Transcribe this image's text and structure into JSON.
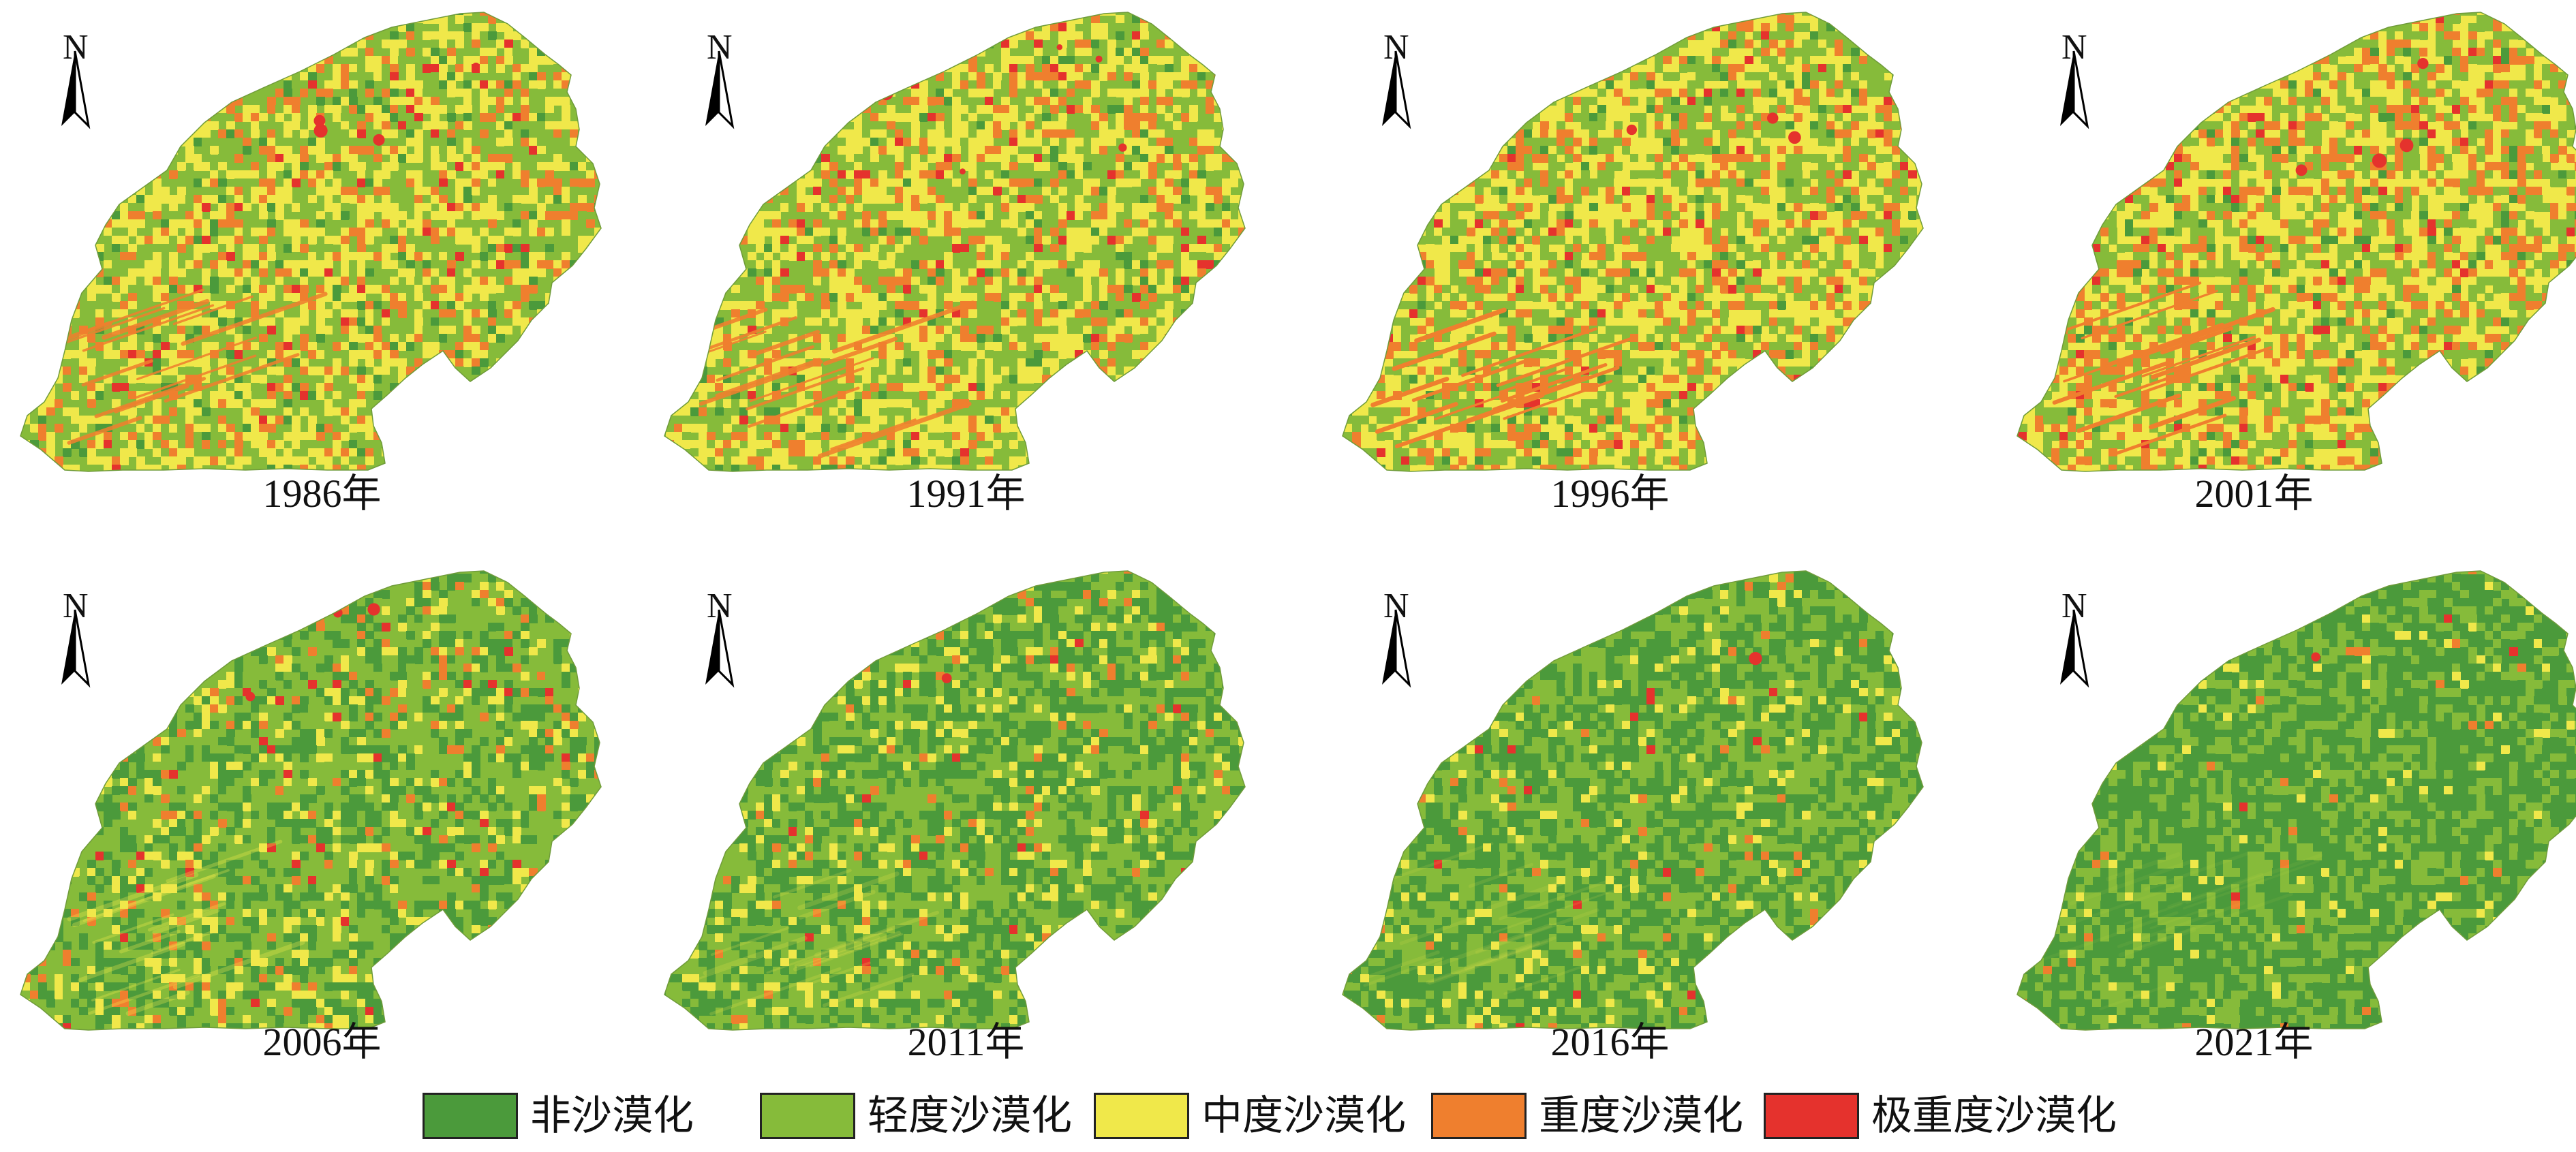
{
  "figure": {
    "panels": [
      {
        "year": "1986年",
        "north": "N",
        "composition": [
          0.05,
          0.45,
          0.35,
          0.13,
          0.02
        ]
      },
      {
        "year": "1991年",
        "north": "N",
        "composition": [
          0.05,
          0.43,
          0.37,
          0.13,
          0.02
        ]
      },
      {
        "year": "1996年",
        "north": "N",
        "composition": [
          0.04,
          0.38,
          0.4,
          0.16,
          0.02
        ]
      },
      {
        "year": "2001年",
        "north": "N",
        "composition": [
          0.04,
          0.33,
          0.4,
          0.21,
          0.02
        ]
      },
      {
        "year": "2006年",
        "north": "N",
        "composition": [
          0.3,
          0.52,
          0.12,
          0.05,
          0.01
        ]
      },
      {
        "year": "2011年",
        "north": "N",
        "composition": [
          0.38,
          0.48,
          0.11,
          0.025,
          0.005
        ]
      },
      {
        "year": "2016年",
        "north": "N",
        "composition": [
          0.45,
          0.46,
          0.07,
          0.015,
          0.005
        ]
      },
      {
        "year": "2021年",
        "north": "N",
        "composition": [
          0.62,
          0.34,
          0.03,
          0.008,
          0.002
        ]
      }
    ]
  },
  "legend": {
    "items": [
      {
        "label": "非沙漠化",
        "color": "#4b9a3b"
      },
      {
        "label": "轻度沙漠化",
        "color": "#86bb3a"
      },
      {
        "label": "中度沙漠化",
        "color": "#f0e84a"
      },
      {
        "label": "重度沙漠化",
        "color": "#ef7f2e"
      },
      {
        "label": "极重度沙漠化",
        "color": "#e5322d"
      }
    ]
  }
}
